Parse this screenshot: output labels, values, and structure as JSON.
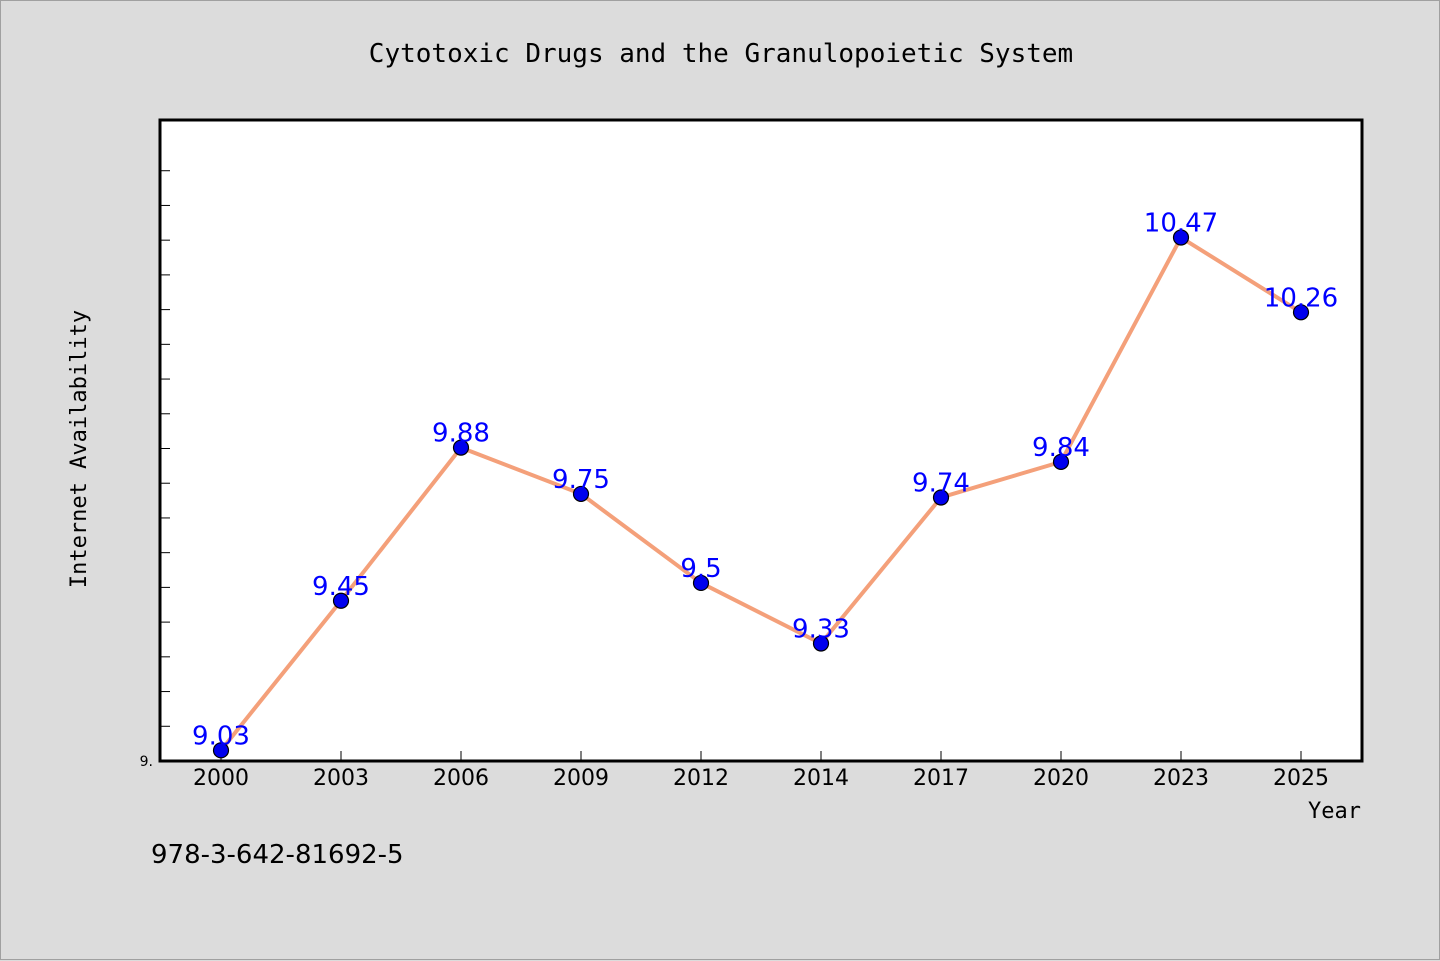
{
  "chart_data": {
    "type": "line",
    "title": "Cytotoxic Drugs and the Granulopoietic System",
    "xlabel": "Year",
    "ylabel": "Internet Availability",
    "categories": [
      "2000",
      "2003",
      "2006",
      "2009",
      "2012",
      "2014",
      "2017",
      "2020",
      "2023",
      "2025"
    ],
    "series": [
      {
        "values": [
          9.03,
          9.45,
          9.88,
          9.75,
          9.5,
          9.33,
          9.74,
          9.84,
          10.47,
          10.26
        ]
      }
    ],
    "ylim": [
      9.0,
      10.8
    ],
    "ytick_label": "9.",
    "grid": false,
    "line_color": "#f4a07a",
    "marker_color": "#0000ee",
    "label_color": "#0000ff"
  },
  "footer_text": "978-3-642-81692-5"
}
